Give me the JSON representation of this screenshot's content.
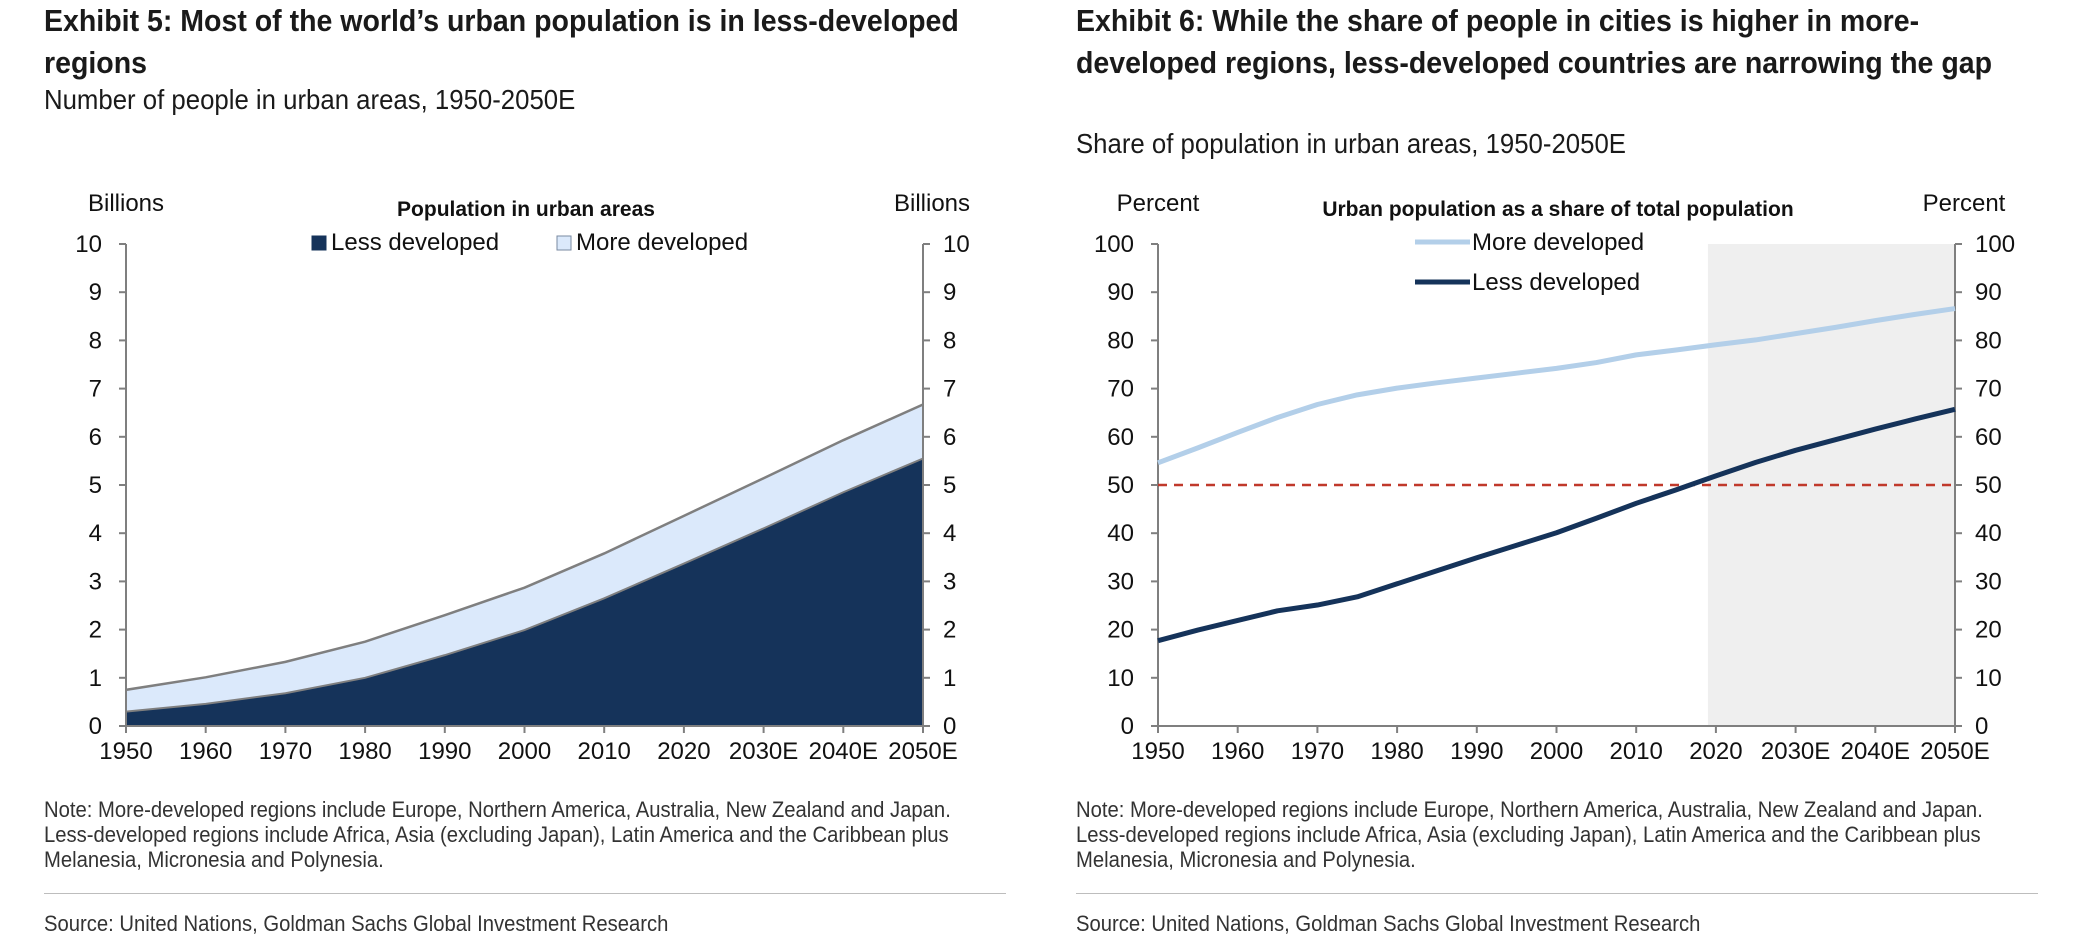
{
  "left": {
    "title": "Exhibit 5: Most of the world’s urban population is in less-developed regions",
    "subtitle": "Number of people in urban areas, 1950-2050E",
    "note": "Note: More-developed regions include Europe, Northern America, Australia, New Zealand and Japan. Less-developed regions include Africa, Asia (excluding Japan), Latin America and the Caribbean plus Melanesia, Micronesia and Polynesia.",
    "source": "Source: United Nations, Goldman Sachs Global Investment Research"
  },
  "right": {
    "title": "Exhibit 6: While the share of people in cities is higher in more-developed regions, less-developed countries are narrowing the gap",
    "subtitle": "Share of population in urban areas, 1950-2050E",
    "note": "Note: More-developed regions include Europe, Northern America, Australia, New Zealand and Japan. Less-developed regions include Africa, Asia (excluding Japan), Latin America and the Caribbean plus Melanesia, Micronesia and Polynesia.",
    "source": "Source: United Nations, Goldman Sachs Global Investment Research"
  },
  "chart_data": [
    {
      "type": "area",
      "stacked": true,
      "title": "Population in urban areas",
      "ylabel_left": "Billions",
      "ylabel_right": "Billions",
      "ylim": [
        0,
        10
      ],
      "yticks": [
        0,
        1,
        2,
        3,
        4,
        5,
        6,
        7,
        8,
        9,
        10
      ],
      "xlim": [
        1950,
        2050
      ],
      "xticks": [
        1950,
        1960,
        1970,
        1980,
        1990,
        2000,
        2010,
        2020,
        2030,
        2040,
        2050
      ],
      "xticklabels": [
        "1950",
        "1960",
        "1970",
        "1980",
        "1990",
        "2000",
        "2010",
        "2020",
        "2030E",
        "2040E",
        "2050E"
      ],
      "x": [
        1950,
        1960,
        1970,
        1980,
        1990,
        2000,
        2010,
        2020,
        2030,
        2040,
        2050
      ],
      "legend_position": "top-center",
      "series": [
        {
          "name": "Less developed",
          "color": "#15335a",
          "values": [
            0.3,
            0.46,
            0.68,
            1.0,
            1.47,
            1.99,
            2.65,
            3.37,
            4.1,
            4.85,
            5.55
          ]
        },
        {
          "name": "More developed",
          "color": "#dbe9fb",
          "values": [
            0.45,
            0.55,
            0.65,
            0.75,
            0.83,
            0.88,
            0.93,
            0.99,
            1.04,
            1.08,
            1.12
          ]
        }
      ]
    },
    {
      "type": "line",
      "title": "Urban population as a share of total population",
      "ylabel_left": "Percent",
      "ylabel_right": "Percent",
      "ylim": [
        0,
        100
      ],
      "yticks": [
        0,
        10,
        20,
        30,
        40,
        50,
        60,
        70,
        80,
        90,
        100
      ],
      "xlim": [
        1950,
        2050
      ],
      "xticks": [
        1950,
        1960,
        1970,
        1980,
        1990,
        2000,
        2010,
        2020,
        2030,
        2040,
        2050
      ],
      "xticklabels": [
        "1950",
        "1960",
        "1970",
        "1980",
        "1990",
        "2000",
        "2010",
        "2020",
        "2030E",
        "2040E",
        "2050E"
      ],
      "x": [
        1950,
        1955,
        1960,
        1965,
        1970,
        1975,
        1980,
        1985,
        1990,
        1995,
        2000,
        2005,
        2010,
        2015,
        2020,
        2025,
        2030,
        2035,
        2040,
        2045,
        2050
      ],
      "legend_position": "top-left",
      "series": [
        {
          "name": "More developed",
          "color": "#b3cfe9",
          "values": [
            54.6,
            57.7,
            60.9,
            64.0,
            66.7,
            68.7,
            70.1,
            71.2,
            72.2,
            73.2,
            74.2,
            75.4,
            77.0,
            78.0,
            79.1,
            80.1,
            81.4,
            82.7,
            84.1,
            85.4,
            86.6
          ]
        },
        {
          "name": "Less developed",
          "color": "#15335a",
          "values": [
            17.7,
            19.9,
            21.9,
            23.9,
            25.1,
            26.8,
            29.5,
            32.2,
            34.9,
            37.5,
            40.1,
            43.1,
            46.2,
            49.0,
            51.9,
            54.7,
            57.2,
            59.4,
            61.6,
            63.7,
            65.7
          ]
        }
      ],
      "reference_line": {
        "value": 50,
        "color": "#c0392b"
      },
      "shaded_region": {
        "x_from": 2019,
        "x_to": 2050,
        "color": "#efefef"
      }
    }
  ]
}
